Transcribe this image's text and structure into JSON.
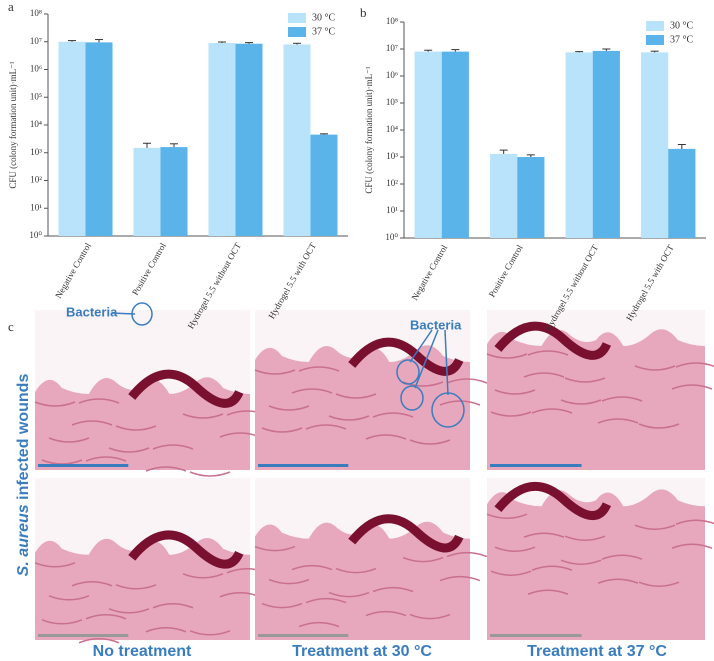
{
  "chart_data": [
    {
      "type": "bar",
      "label": "a",
      "ylabel": "CFU (colony formation unit)·mL⁻¹",
      "categories": [
        "Negative Control",
        "Positive Control",
        "Hydrogel 5.5 without OCT",
        "Hydrogel 5.5 with OCT"
      ],
      "series": [
        {
          "name": "30 °C",
          "color": "#b9e3fb",
          "values": [
            10000000,
            1500,
            9000000,
            8000000
          ],
          "errors": [
            1000000,
            700,
            800000,
            800000
          ]
        },
        {
          "name": "37 °C",
          "color": "#5ab4ea",
          "values": [
            9500000,
            1600,
            8500000,
            4500
          ],
          "errors": [
            2500000,
            500,
            800000,
            300
          ]
        }
      ],
      "ylim": [
        1,
        100000000
      ],
      "log_y": true,
      "legend": "upper right",
      "yticks": [
        {
          "value": 1,
          "label": "10⁰"
        },
        {
          "value": 10,
          "label": "10¹"
        },
        {
          "value": 100,
          "label": "10²"
        },
        {
          "value": 1000,
          "label": "10³"
        },
        {
          "value": 10000,
          "label": "10⁴"
        },
        {
          "value": 100000,
          "label": "10⁵"
        },
        {
          "value": 1000000,
          "label": "10⁶"
        },
        {
          "value": 10000000,
          "label": "10⁷"
        },
        {
          "value": 100000000,
          "label": "10⁸"
        }
      ]
    },
    {
      "type": "bar",
      "label": "b",
      "ylabel": "CFU (colony formation unit)·mL⁻¹",
      "categories": [
        "Negative Control",
        "Positive Control",
        "Hydrogel 5.5 without OCT",
        "Hydrogel 5.5 with OCT"
      ],
      "series": [
        {
          "name": "30 °C",
          "color": "#b9e3fb",
          "values": [
            8000000,
            1300,
            7500000,
            7500000
          ],
          "errors": [
            1000000,
            500,
            500000,
            800000
          ]
        },
        {
          "name": "37 °C",
          "color": "#5ab4ea",
          "values": [
            8000000,
            1000,
            8500000,
            2000
          ],
          "errors": [
            1500000,
            200,
            1500000,
            900
          ]
        }
      ],
      "ylim": [
        1,
        100000000
      ],
      "log_y": true,
      "legend": "upper right",
      "yticks": [
        {
          "value": 1,
          "label": "10⁰"
        },
        {
          "value": 10,
          "label": "10¹"
        },
        {
          "value": 100,
          "label": "10²"
        },
        {
          "value": 1000,
          "label": "10³"
        },
        {
          "value": 10000,
          "label": "10⁴"
        },
        {
          "value": 100000,
          "label": "10⁵"
        },
        {
          "value": 1000000,
          "label": "10⁶"
        },
        {
          "value": 10000000,
          "label": "10⁷"
        },
        {
          "value": 100000000,
          "label": "10⁸"
        }
      ]
    }
  ],
  "panel_c": {
    "label": "c",
    "row_title_italic": "S. aureus",
    "row_title_rest": " infected wounds",
    "annotations": [
      "Bacteria",
      "Bacteria"
    ],
    "columns": [
      "No treatment",
      "Treatment at 30 °C",
      "Treatment at 37 °C"
    ]
  }
}
